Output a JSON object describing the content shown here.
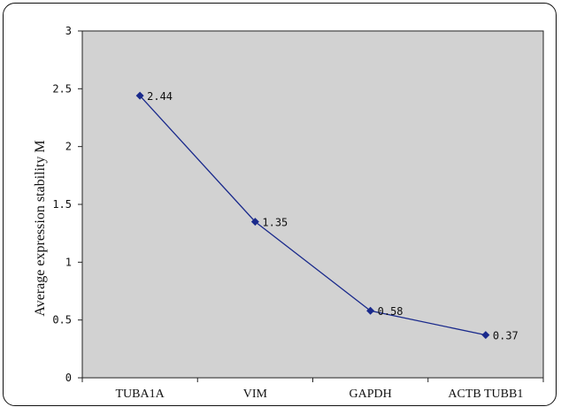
{
  "chart_data": {
    "type": "line",
    "categories": [
      "TUBA1A",
      "VIM",
      "GAPDH",
      "ACTB TUBB1"
    ],
    "series": [
      {
        "values": [
          2.44,
          1.35,
          0.58,
          0.37
        ],
        "labels": [
          "2.44",
          "1.35",
          "0.58",
          "0.37"
        ]
      }
    ],
    "ylabel": "Average expression stability M",
    "xlabel": "",
    "ylim": [
      0,
      3
    ],
    "yticks": [
      "0",
      "0.5",
      "1",
      "1.5",
      "2",
      "2.5",
      "3"
    ],
    "grid": false,
    "plot_background": "#d2d2d2",
    "line_color": "#1a2a8c",
    "marker": "diamond"
  }
}
